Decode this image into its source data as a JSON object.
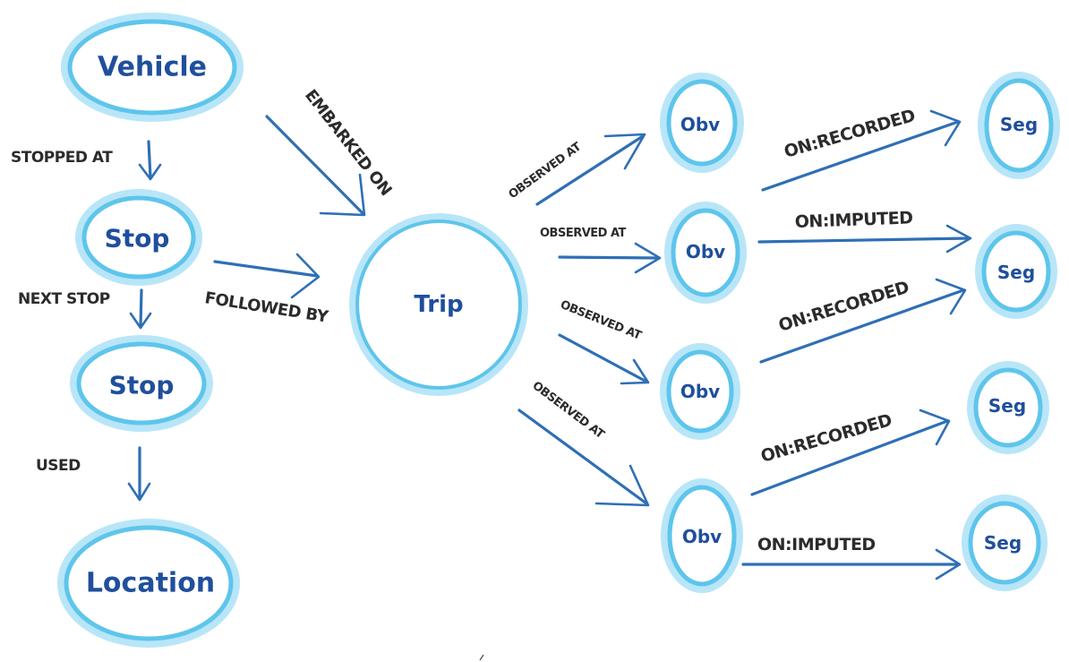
{
  "nodes": {
    "vehicle": "Vehicle",
    "stop_1": "Stop",
    "stop_2": "Stop",
    "location": "Location",
    "trip": "Trip",
    "obv_1": "Obv",
    "obv_2": "Obv",
    "obv_3": "Obv",
    "obv_4": "Obv",
    "seg_1": "Seg",
    "seg_2": "Seg",
    "seg_3": "Seg",
    "seg_4": "Seg"
  },
  "edges": {
    "stopped_at": "STOPPED AT",
    "next_stop": "NEXT STOP",
    "used": "USED",
    "embarked_on": "EMBARKED ON",
    "followed_by": "FOLLOWED BY",
    "observed_at_1": "OBSERVED AT",
    "observed_at_2": "OBSERVED AT",
    "observed_at_3": "OBSERVED AT",
    "observed_at_4": "OBSERVED AT",
    "on_recorded_1": "ON:RECORDED",
    "on_imputed_1": "ON:IMPUTED",
    "on_recorded_2": "ON:RECORDED",
    "on_recorded_3": "ON:RECORDED",
    "on_imputed_2": "ON:IMPUTED"
  },
  "colors": {
    "node_ring": "#5ec5ec",
    "node_text": "#1f4f9c",
    "arrow": "#2f6fb5",
    "edge_text": "#2b2b2b"
  }
}
